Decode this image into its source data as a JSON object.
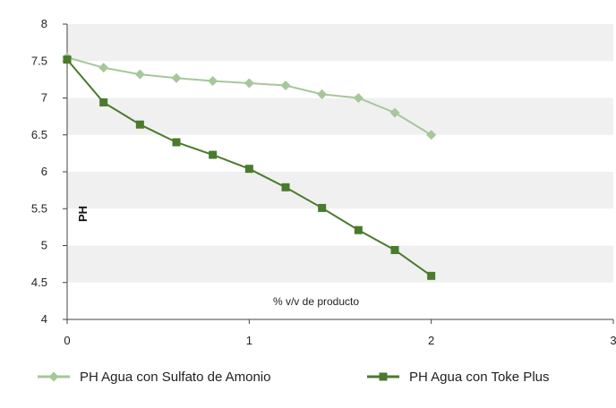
{
  "chart_data": {
    "type": "line",
    "title": "",
    "xlabel": "% v/v de producto",
    "ylabel": "PH",
    "xlim": [
      0,
      3
    ],
    "ylim": [
      4,
      8
    ],
    "x_ticks": [
      "0",
      "1",
      "2",
      "3"
    ],
    "y_ticks": [
      "4",
      "4.5",
      "5",
      "5.5",
      "6",
      "6.5",
      "7",
      "7.5",
      "8"
    ],
    "grid": "alternating horizontal bands",
    "legend_position": "bottom",
    "x": [
      0,
      0.2,
      0.4,
      0.6,
      0.8,
      1.0,
      1.2,
      1.4,
      1.6,
      1.8,
      2.0
    ],
    "series": [
      {
        "name": "PH Agua con Sulfato de Amonio",
        "color": "#a6c79a",
        "marker": "diamond",
        "values": [
          7.55,
          7.41,
          7.32,
          7.27,
          7.23,
          7.2,
          7.17,
          7.05,
          7.0,
          6.8,
          6.5
        ]
      },
      {
        "name": "PH Agua con Toke Plus",
        "color": "#4a7a2c",
        "marker": "square",
        "values": [
          7.52,
          6.94,
          6.64,
          6.4,
          6.23,
          6.04,
          5.79,
          5.51,
          5.21,
          4.94,
          4.59
        ]
      }
    ]
  }
}
